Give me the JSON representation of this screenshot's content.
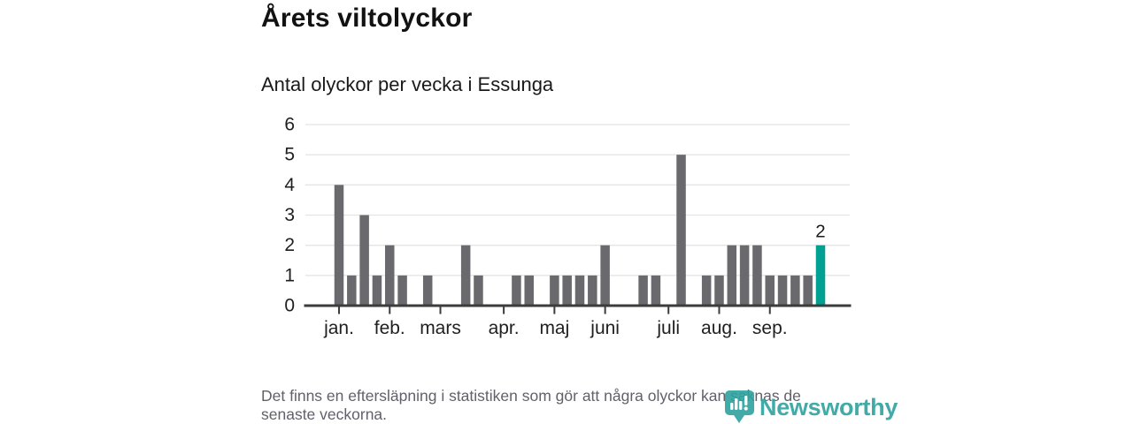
{
  "header": {
    "title": "Årets viltolyckor",
    "subtitle": "Antal olyckor per vecka i Essunga"
  },
  "chart_data": {
    "type": "bar",
    "title": "Årets viltolyckor",
    "subtitle": "Antal olyckor per vecka i Essunga",
    "xlabel": "",
    "ylabel": "Antal olyckor per vecka",
    "ylim": [
      0,
      6
    ],
    "yticks": [
      0,
      1,
      2,
      3,
      4,
      5,
      6
    ],
    "grid": "horizontal",
    "legend": "none",
    "weeks": [
      1,
      2,
      3,
      4,
      5,
      6,
      7,
      8,
      9,
      10,
      11,
      12,
      13,
      14,
      15,
      16,
      17,
      18,
      19,
      20,
      21,
      22,
      23,
      24,
      25,
      26,
      27,
      28,
      29,
      30,
      31,
      32,
      33,
      34,
      35,
      36,
      37,
      38,
      39
    ],
    "values": [
      4,
      1,
      3,
      1,
      2,
      1,
      0,
      1,
      0,
      0,
      2,
      1,
      0,
      0,
      1,
      1,
      0,
      1,
      1,
      1,
      1,
      2,
      0,
      0,
      1,
      1,
      0,
      5,
      0,
      1,
      1,
      2,
      2,
      2,
      1,
      1,
      1,
      1,
      2
    ],
    "month_ticks": [
      {
        "label": "jan.",
        "week": 1
      },
      {
        "label": "feb.",
        "week": 5
      },
      {
        "label": "mars",
        "week": 9
      },
      {
        "label": "apr.",
        "week": 14
      },
      {
        "label": "maj",
        "week": 18
      },
      {
        "label": "juni",
        "week": 22
      },
      {
        "label": "juli",
        "week": 27
      },
      {
        "label": "aug.",
        "week": 31
      },
      {
        "label": "sep.",
        "week": 35
      }
    ],
    "highlight": {
      "index": 38,
      "value": 2,
      "label": "2"
    },
    "colors": {
      "bar": "#69696e",
      "highlight": "#00a093",
      "grid": "#e4e4e7",
      "axis": "#3c3c3c",
      "axis_text": "#1f1f1f",
      "value_label": "#1a1a1a"
    }
  },
  "footer": {
    "line1": "Det finns en eftersläpning i statistiken som gör att några olyckor kan saknas de",
    "line2": "senaste veckorna."
  },
  "logo": {
    "name": "Newsworthy",
    "color": "#2ea19e"
  }
}
